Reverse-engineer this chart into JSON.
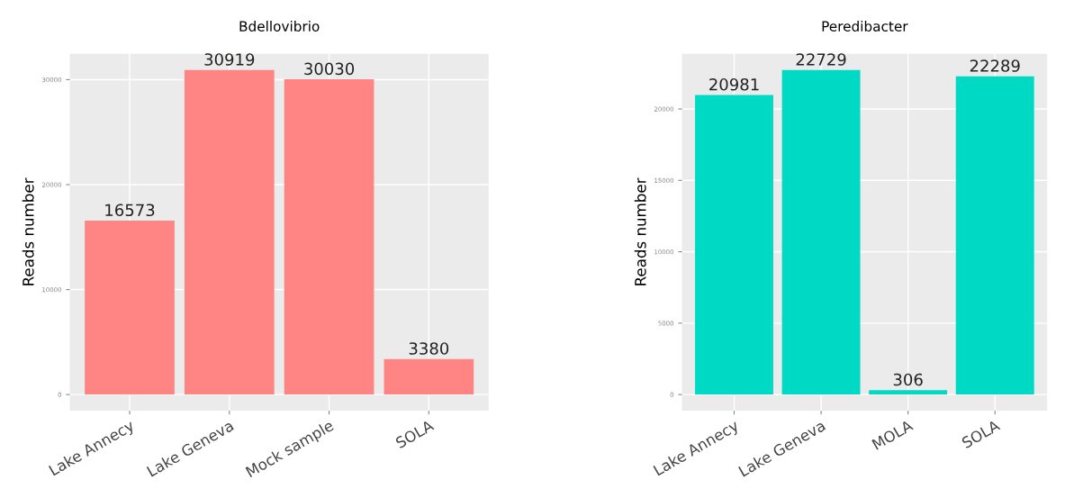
{
  "chart_data": [
    {
      "type": "bar",
      "title": "Bdellovibrio",
      "ylabel": "Reads number",
      "categories": [
        "Lake Annecy",
        "Lake Geneva",
        "Mock sample",
        "SOLA"
      ],
      "values": [
        16573,
        30919,
        30030,
        3380
      ],
      "color": "#fe8583",
      "ylim": [
        -1546,
        32465
      ],
      "yticks": [
        0,
        10000,
        20000,
        30000
      ],
      "data_labels": true,
      "grid": true
    },
    {
      "type": "bar",
      "title": "Peredibacter",
      "ylabel": "Reads number",
      "categories": [
        "Lake Annecy",
        "Lake Geneva",
        "MOLA",
        "SOLA"
      ],
      "values": [
        20981,
        22729,
        306,
        22289
      ],
      "color": "#00d9c4",
      "ylim": [
        -1136,
        23865
      ],
      "yticks": [
        0,
        5000,
        10000,
        15000,
        20000
      ],
      "data_labels": true,
      "grid": true
    }
  ]
}
